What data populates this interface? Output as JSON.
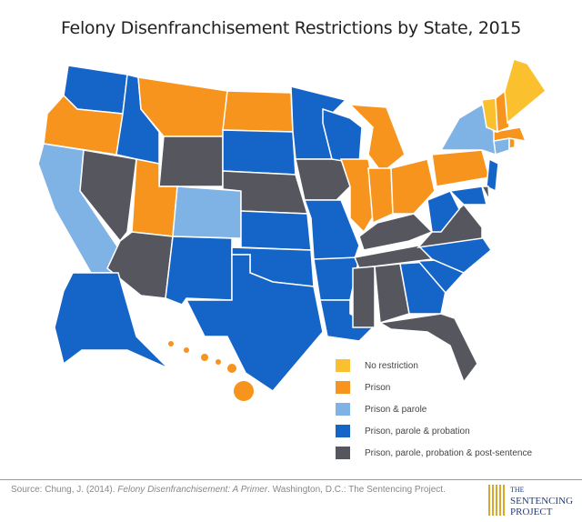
{
  "title": "Felony Disenfranchisement Restrictions by State, 2015",
  "legend": [
    {
      "key": "none",
      "label": "No restriction",
      "color": "#FBC02D"
    },
    {
      "key": "prison",
      "label": "Prison",
      "color": "#F7941D"
    },
    {
      "key": "parole",
      "label": "Prison & parole",
      "color": "#7FB2E5"
    },
    {
      "key": "probation",
      "label": "Prison, parole & probation",
      "color": "#1565C8"
    },
    {
      "key": "post",
      "label": "Prison, parole, probation & post-sentence",
      "color": "#55565E"
    }
  ],
  "states": {
    "ME": "none",
    "VT": "none",
    "OR": "prison",
    "MT": "prison",
    "ND": "prison",
    "UT": "prison",
    "IL": "prison",
    "IN": "prison",
    "MI": "prison",
    "OH": "prison",
    "PA": "prison",
    "NH": "prison",
    "MA": "prison",
    "RI": "prison",
    "HI": "prison",
    "CA": "parole",
    "CO": "parole",
    "NY": "parole",
    "CT": "parole",
    "WA": "probation",
    "ID": "probation",
    "SD": "probation",
    "MN": "probation",
    "WI": "probation",
    "KS": "probation",
    "OK": "probation",
    "TX": "probation",
    "NM": "probation",
    "MO": "probation",
    "AR": "probation",
    "LA": "probation",
    "WV": "probation",
    "NC": "probation",
    "SC": "probation",
    "GA": "probation",
    "NJ": "probation",
    "MD": "probation",
    "AK": "probation",
    "NV": "post",
    "AZ": "post",
    "WY": "post",
    "NE": "post",
    "IA": "post",
    "KY": "post",
    "TN": "post",
    "VA": "post",
    "MS": "post",
    "AL": "post",
    "FL": "post",
    "DE": "post"
  },
  "source": {
    "prefix": "Source: Chung, J. (2014). ",
    "italic": "Felony Disenfranchisement: A Primer",
    "suffix": ". Washington, D.C.: The Sentencing Project."
  },
  "logo": {
    "line1": "THE",
    "line2": "SENTENCING",
    "line3": "PROJECT"
  }
}
